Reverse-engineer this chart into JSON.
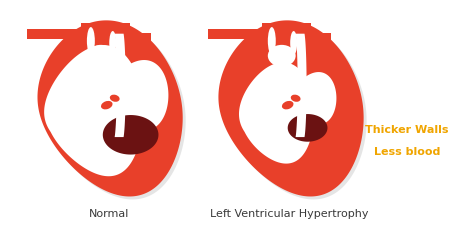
{
  "bg_color": "#ffffff",
  "heart_red": "#e8402a",
  "heart_dark_red": "#6b1212",
  "heart_white": "#ffffff",
  "shadow_color": "#d0d0d0",
  "text_normal": "Normal",
  "text_hypertrophy": "Left Ventricular Hypertrophy",
  "text_thicker": "Thicker Walls",
  "text_less": "Less blood",
  "annotation_color": "#f0a500",
  "label_color": "#3a3a3a",
  "label_fontsize": 8,
  "annotation_fontsize": 8
}
